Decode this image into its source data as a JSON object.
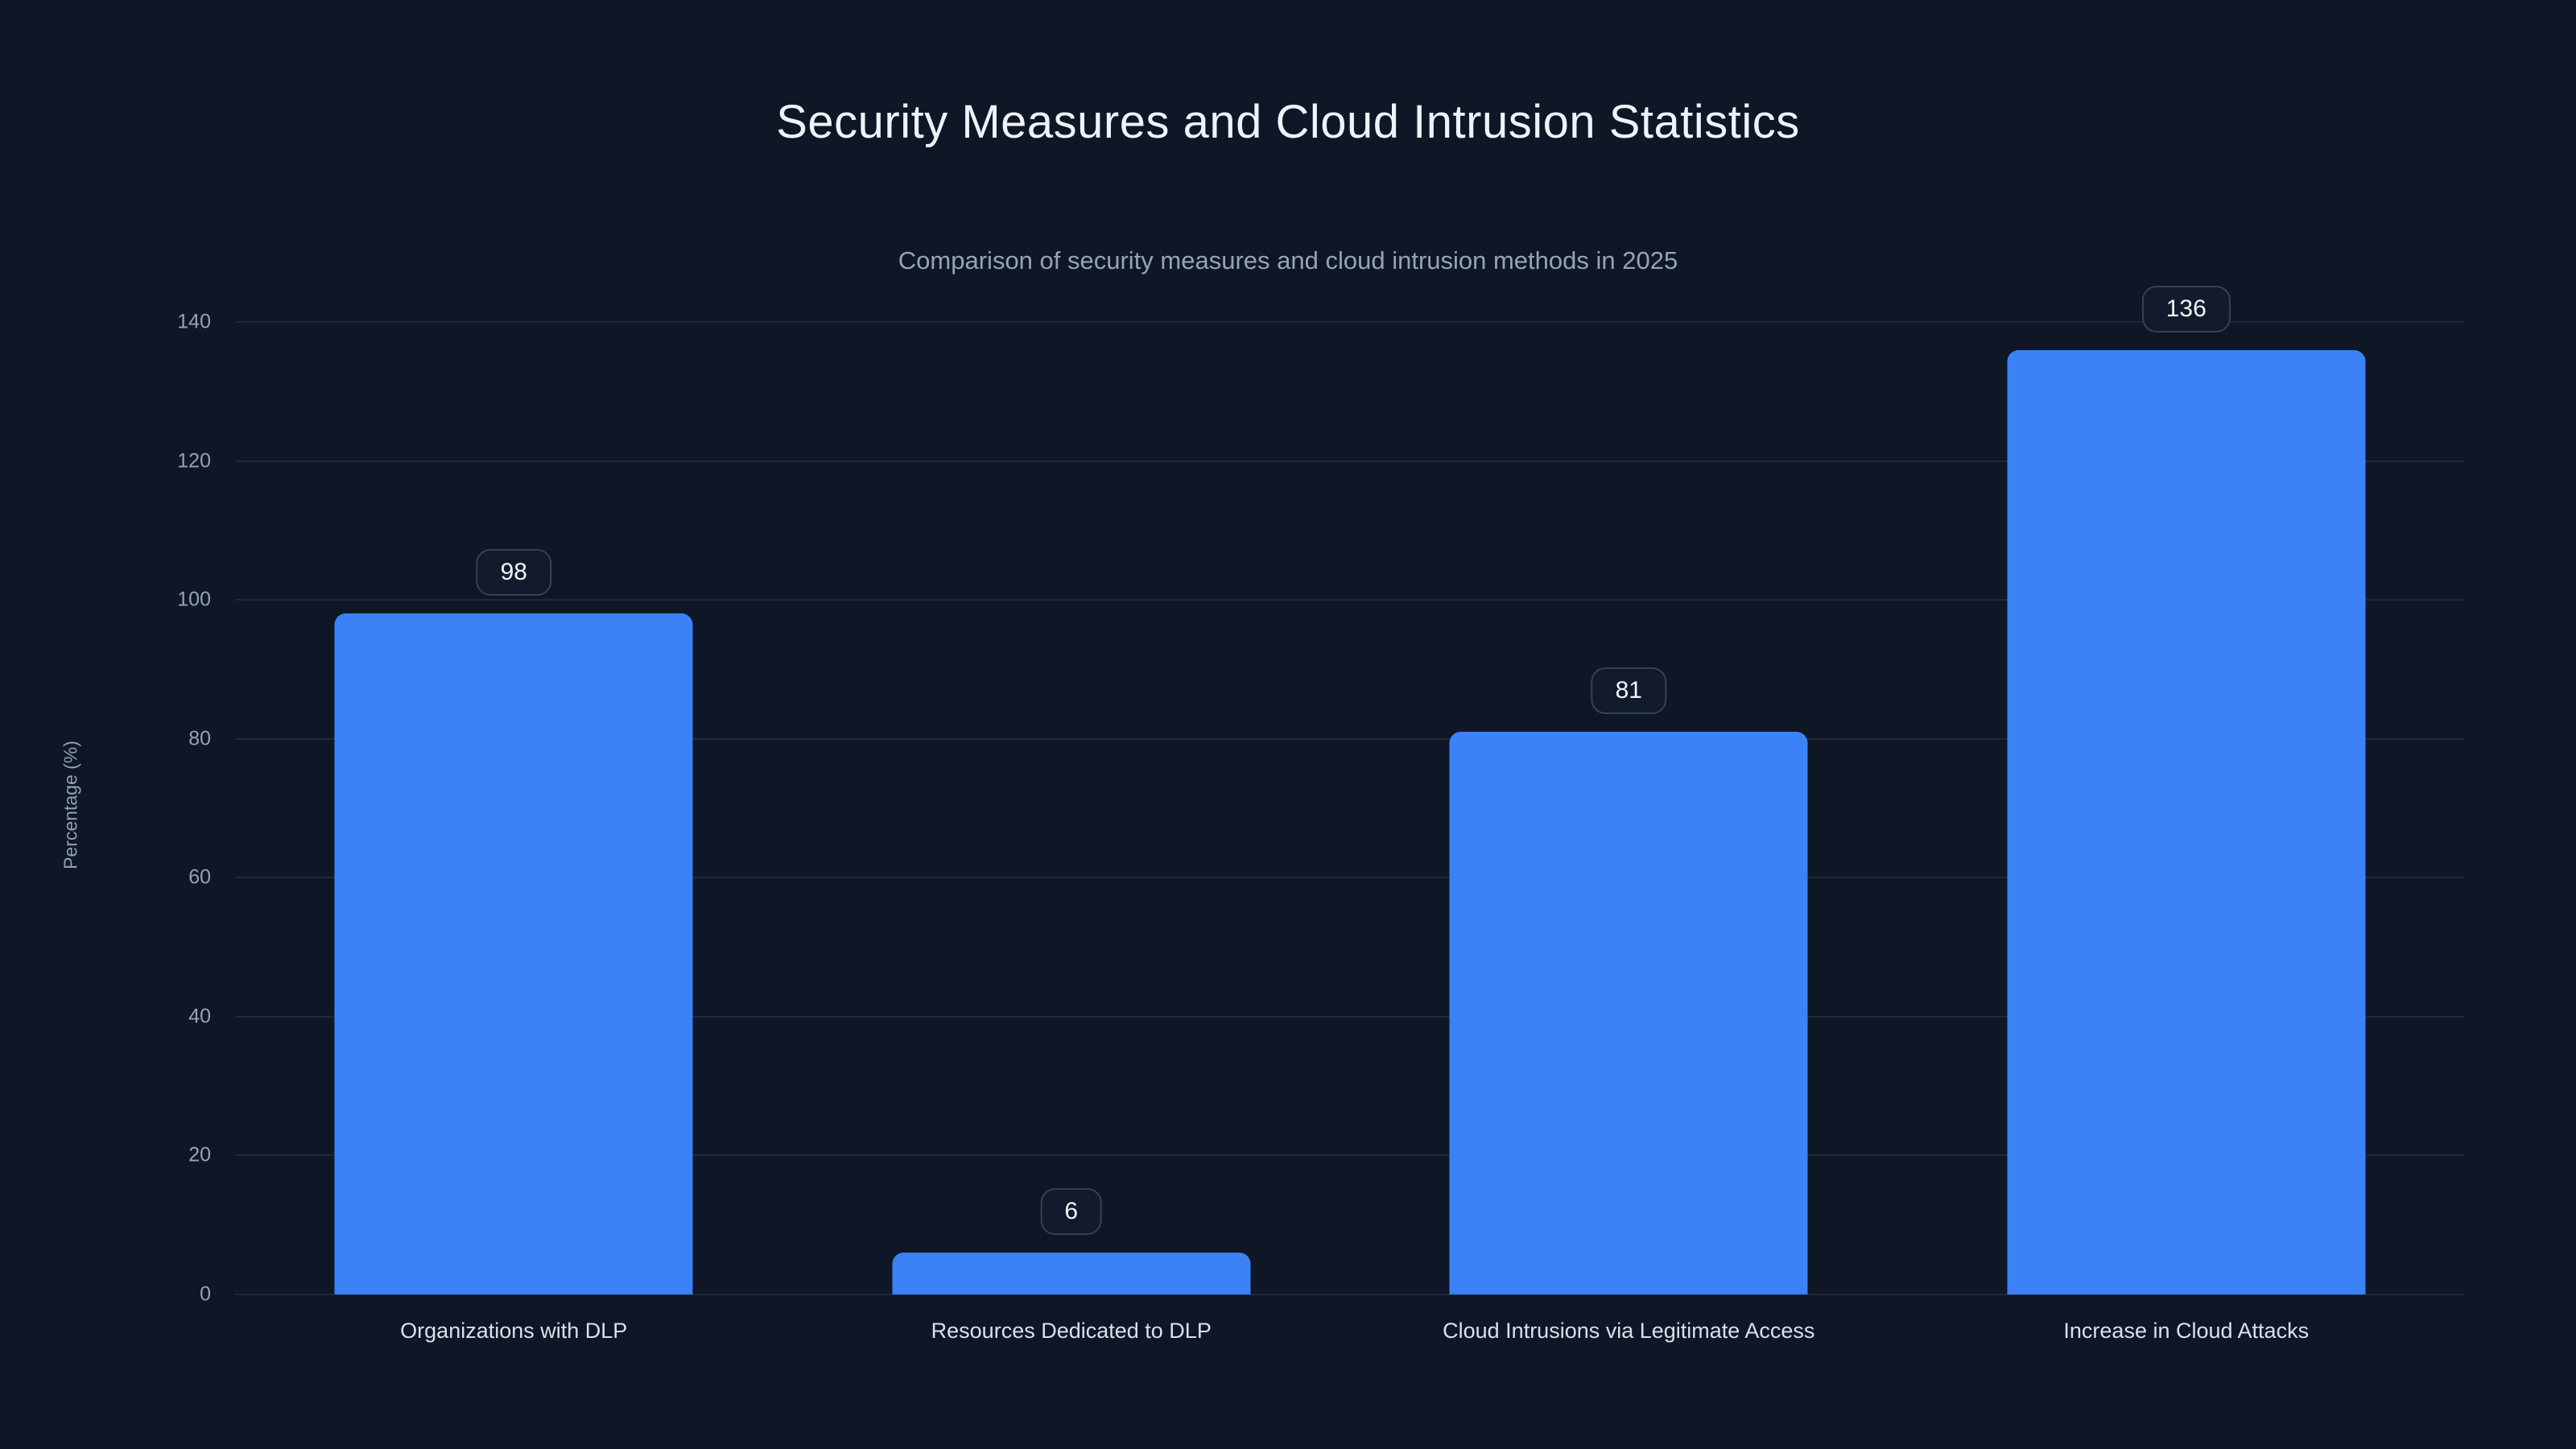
{
  "page": {
    "title": "Security Measures and Cloud Intrusion Statistics",
    "subtitle": "Comparison of security measures and cloud intrusion methods in 2025"
  },
  "chart_data": {
    "type": "bar",
    "title": "Security Measures and Cloud Intrusion Statistics",
    "subtitle": "Comparison of security measures and cloud intrusion methods in 2025",
    "categories": [
      "Organizations with DLP",
      "Resources Dedicated to DLP",
      "Cloud Intrusions via Legitimate Access",
      "Increase in Cloud Attacks"
    ],
    "values": [
      98,
      6,
      81,
      136
    ],
    "value_labels": [
      "98",
      "6",
      "81",
      "136"
    ],
    "xlabel": "",
    "ylabel": "Percentage (%)",
    "ylim": [
      0,
      140
    ],
    "yticks": [
      0,
      20,
      40,
      60,
      80,
      100,
      120,
      140
    ],
    "grid": true,
    "legend": "none",
    "bar_color": "#3b82f6",
    "background_color": "#0f1726",
    "gridline_color": "rgba(148,163,184,0.13)"
  }
}
